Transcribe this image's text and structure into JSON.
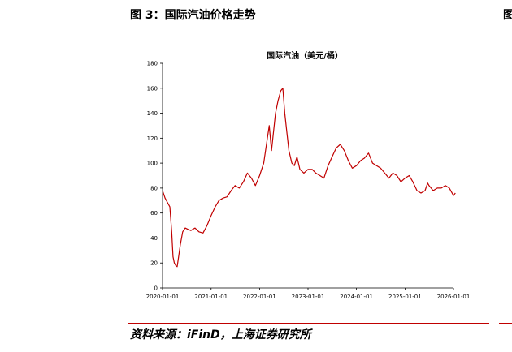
{
  "figure": {
    "title": "图 3：国际汽油价格走势",
    "source": "资料来源：iFinD，上海证券研究所",
    "right_stub": "图"
  },
  "chart_data": {
    "type": "line",
    "title": "国际汽油（美元/桶）",
    "xlabel": "",
    "ylabel": "",
    "ylim": [
      0,
      180
    ],
    "yticks": [
      "0",
      "20",
      "40",
      "60",
      "80",
      "100",
      "120",
      "140",
      "160",
      "180"
    ],
    "xticks": [
      "2020-01-01",
      "2021-01-01",
      "2022-01-01",
      "2023-01-01",
      "2024-01-01",
      "2025-01-01",
      "2026-01-01"
    ],
    "grid": false,
    "legend": "none",
    "color": "#c00000",
    "series": [
      {
        "x": [
          "2020-01-01",
          "2020-01-20",
          "2020-02-10",
          "2020-02-25",
          "2020-03-10",
          "2020-03-20",
          "2020-03-30",
          "2020-04-10",
          "2020-04-20",
          "2020-05-01",
          "2020-05-15",
          "2020-06-01",
          "2020-06-20",
          "2020-07-10",
          "2020-08-01",
          "2020-09-01",
          "2020-10-01",
          "2020-11-01",
          "2020-12-01",
          "2021-01-01",
          "2021-02-01",
          "2021-03-01",
          "2021-04-01",
          "2021-05-01",
          "2021-06-01",
          "2021-07-01",
          "2021-08-01",
          "2021-09-01",
          "2021-10-01",
          "2021-11-01",
          "2021-12-01",
          "2022-01-01",
          "2022-02-01",
          "2022-03-01",
          "2022-03-15",
          "2022-04-01",
          "2022-05-01",
          "2022-05-20",
          "2022-06-10",
          "2022-06-25",
          "2022-07-10",
          "2022-07-25",
          "2022-08-10",
          "2022-09-01",
          "2022-09-20",
          "2022-10-10",
          "2022-11-01",
          "2022-12-01",
          "2023-01-01",
          "2023-02-01",
          "2023-03-01",
          "2023-04-01",
          "2023-05-01",
          "2023-06-01",
          "2023-07-01",
          "2023-08-01",
          "2023-09-01",
          "2023-10-01",
          "2023-11-01",
          "2023-12-01",
          "2024-01-01",
          "2024-02-01",
          "2024-03-01",
          "2024-04-01",
          "2024-05-01",
          "2024-06-01",
          "2024-07-01",
          "2024-08-01",
          "2024-09-01",
          "2024-10-01",
          "2024-11-01",
          "2024-12-01",
          "2025-01-01",
          "2025-02-01",
          "2025-03-01",
          "2025-04-01",
          "2025-05-01",
          "2025-06-01",
          "2025-06-20",
          "2025-07-01",
          "2025-08-01",
          "2025-09-01",
          "2025-10-01",
          "2025-11-01",
          "2025-12-01",
          "2026-01-01",
          "2026-01-15"
        ],
        "y": [
          78,
          72,
          68,
          65,
          45,
          25,
          20,
          18,
          17,
          25,
          35,
          45,
          48,
          47,
          46,
          48,
          45,
          44,
          50,
          58,
          65,
          70,
          72,
          73,
          78,
          82,
          80,
          85,
          92,
          88,
          82,
          90,
          100,
          120,
          130,
          110,
          140,
          150,
          158,
          160,
          140,
          125,
          110,
          100,
          98,
          105,
          95,
          92,
          95,
          95,
          92,
          90,
          88,
          98,
          105,
          112,
          115,
          110,
          102,
          96,
          98,
          102,
          104,
          108,
          100,
          98,
          96,
          92,
          88,
          92,
          90,
          85,
          88,
          90,
          85,
          78,
          76,
          78,
          84,
          82,
          78,
          80,
          80,
          82,
          80,
          74,
          76
        ]
      }
    ]
  }
}
